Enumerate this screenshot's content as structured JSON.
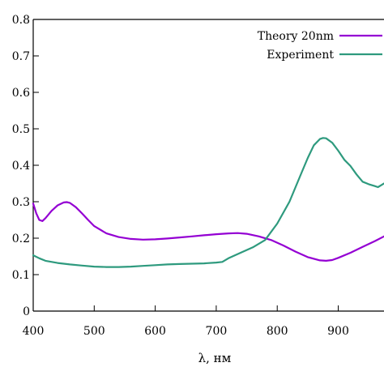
{
  "chart_data": {
    "type": "line",
    "title": "",
    "xlabel": "λ, нм",
    "ylabel": "",
    "xlim": [
      400,
      975
    ],
    "ylim": [
      0,
      0.8
    ],
    "xticks": [
      "400",
      "500",
      "600",
      "700",
      "800",
      "900"
    ],
    "yticks": [
      "0",
      "0.1",
      "0.2",
      "0.3",
      "0.4",
      "0.5",
      "0.6",
      "0.7",
      "0.8"
    ],
    "grid": false,
    "legend_position": "top-right",
    "series": [
      {
        "name": "Theory 20nm",
        "color": "#9400d3",
        "x": [
          400,
          405,
          410,
          415,
          420,
          430,
          440,
          450,
          455,
          460,
          470,
          480,
          490,
          500,
          520,
          540,
          560,
          580,
          600,
          620,
          640,
          660,
          680,
          700,
          720,
          735,
          750,
          770,
          790,
          810,
          830,
          850,
          870,
          880,
          890,
          900,
          920,
          940,
          960,
          975
        ],
        "y": [
          0.295,
          0.268,
          0.25,
          0.247,
          0.255,
          0.275,
          0.29,
          0.298,
          0.299,
          0.297,
          0.285,
          0.268,
          0.25,
          0.233,
          0.213,
          0.203,
          0.198,
          0.196,
          0.197,
          0.199,
          0.202,
          0.205,
          0.208,
          0.211,
          0.213,
          0.214,
          0.212,
          0.205,
          0.195,
          0.18,
          0.163,
          0.148,
          0.139,
          0.138,
          0.14,
          0.146,
          0.16,
          0.176,
          0.192,
          0.205
        ]
      },
      {
        "name": "Experiment",
        "color": "#2e9a7e",
        "x": [
          400,
          410,
          420,
          440,
          460,
          480,
          500,
          520,
          540,
          560,
          580,
          600,
          620,
          640,
          660,
          680,
          700,
          710,
          720,
          740,
          760,
          780,
          800,
          820,
          840,
          850,
          860,
          870,
          875,
          880,
          890,
          900,
          910,
          920,
          930,
          940,
          950,
          960,
          965,
          970,
          975
        ],
        "y": [
          0.153,
          0.145,
          0.138,
          0.132,
          0.128,
          0.125,
          0.122,
          0.121,
          0.121,
          0.122,
          0.124,
          0.126,
          0.128,
          0.129,
          0.13,
          0.131,
          0.133,
          0.135,
          0.145,
          0.16,
          0.175,
          0.195,
          0.24,
          0.3,
          0.38,
          0.42,
          0.455,
          0.472,
          0.475,
          0.474,
          0.462,
          0.44,
          0.415,
          0.398,
          0.375,
          0.355,
          0.348,
          0.343,
          0.34,
          0.345,
          0.35
        ]
      }
    ]
  }
}
